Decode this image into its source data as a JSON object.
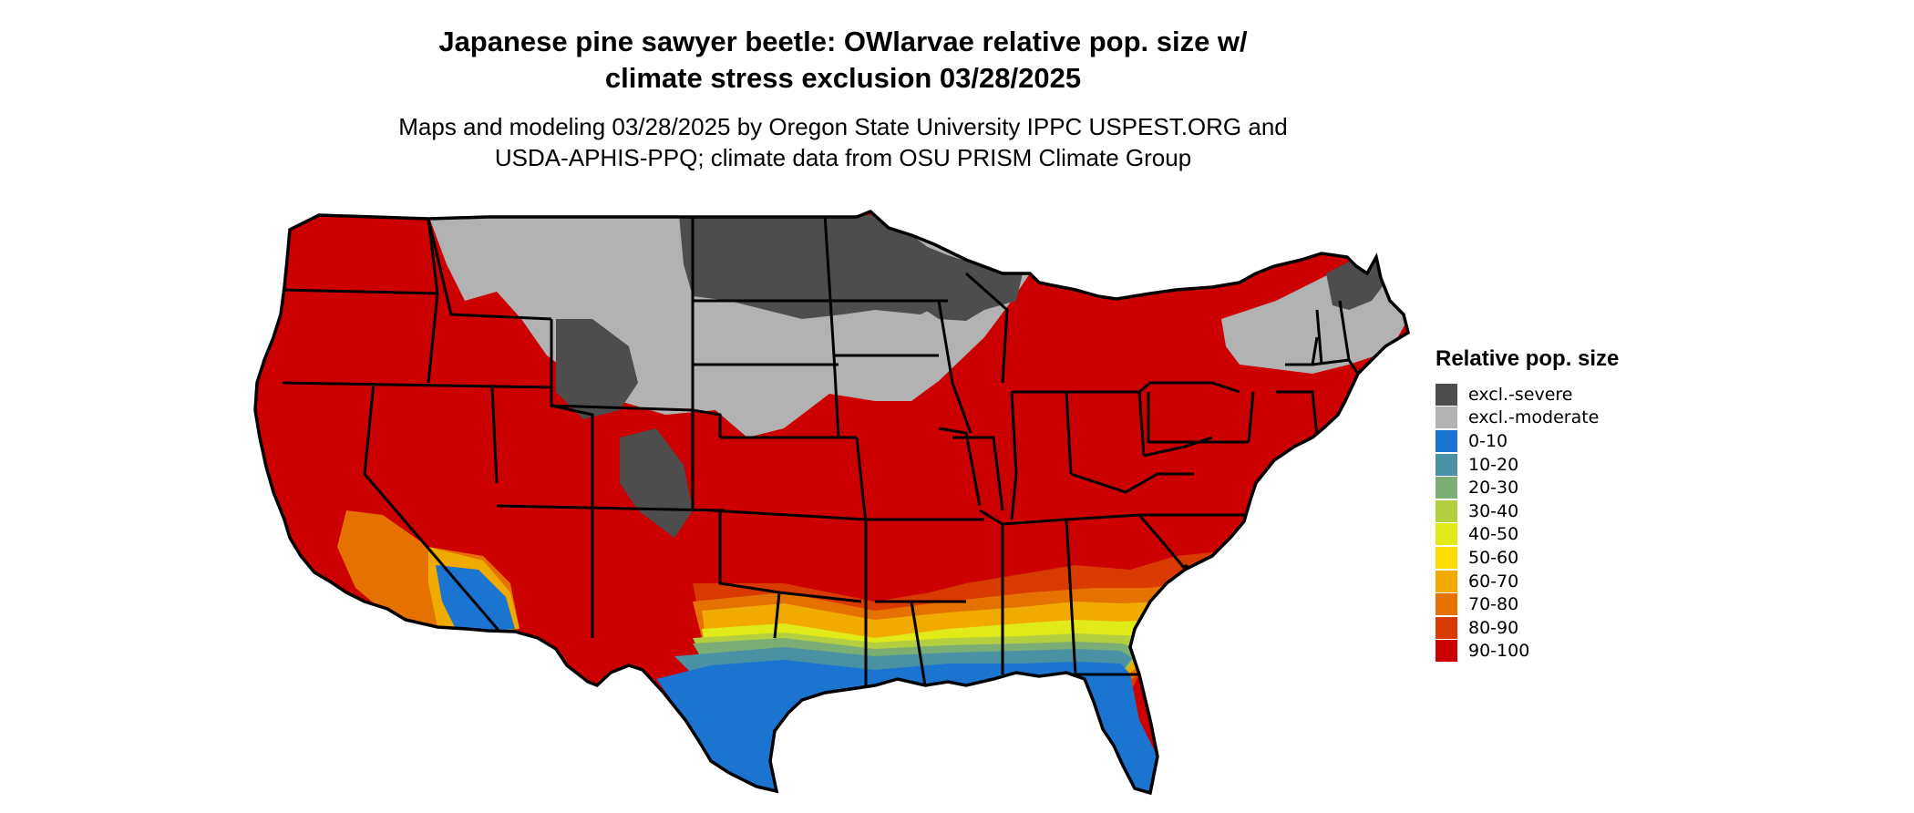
{
  "title_line1": "Japanese pine sawyer beetle: OWlarvae relative pop. size w/",
  "title_line2": "climate stress exclusion 03/28/2025",
  "subtitle_line1": "Maps and modeling 03/28/2025 by Oregon State University IPPC USPEST.ORG and",
  "subtitle_line2": "USDA-APHIS-PPQ; climate data from OSU PRISM Climate Group",
  "legend": {
    "title": "Relative pop. size",
    "items": [
      {
        "label": "excl.-severe",
        "color": "#4d4d4d"
      },
      {
        "label": "excl.-moderate",
        "color": "#b2b2b2"
      },
      {
        "label": "0-10",
        "color": "#1a74d0"
      },
      {
        "label": "10-20",
        "color": "#4a91a4"
      },
      {
        "label": "20-30",
        "color": "#7aae74"
      },
      {
        "label": "30-40",
        "color": "#b3cf40"
      },
      {
        "label": "40-50",
        "color": "#e0ea18"
      },
      {
        "label": "50-60",
        "color": "#fbdd00"
      },
      {
        "label": "60-70",
        "color": "#f0aa00"
      },
      {
        "label": "70-80",
        "color": "#e57100"
      },
      {
        "label": "80-90",
        "color": "#d83a00"
      },
      {
        "label": "90-100",
        "color": "#cc0000"
      }
    ]
  }
}
